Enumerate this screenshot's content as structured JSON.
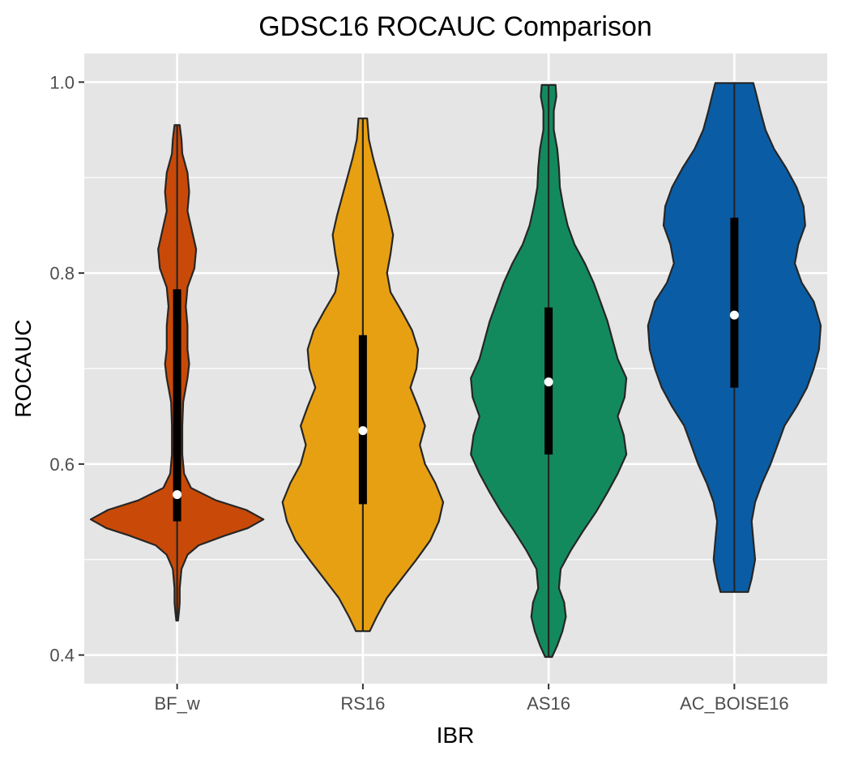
{
  "chart_data": {
    "type": "violin",
    "title": "GDSC16 ROCAUC Comparison",
    "xlabel": "IBR",
    "ylabel": "ROCAUC",
    "ylim": [
      0.37,
      1.03
    ],
    "yticks": [
      0.4,
      0.6,
      0.8,
      1.0
    ],
    "ytick_labels": [
      "0.4",
      "0.6",
      "0.8",
      "1.0"
    ],
    "grid": true,
    "legend": "none",
    "categories": [
      "BF_w",
      "RS16",
      "AS16",
      "AC_BOISE16"
    ],
    "series": [
      {
        "category": "BF_w",
        "color": "#C94A08",
        "min": 0.436,
        "max": 0.955,
        "q1": 0.54,
        "median": 0.568,
        "q3": 0.783,
        "density": [
          [
            0.436,
            0.01
          ],
          [
            0.446,
            0.022
          ],
          [
            0.455,
            0.03
          ],
          [
            0.47,
            0.03
          ],
          [
            0.49,
            0.05
          ],
          [
            0.505,
            0.12
          ],
          [
            0.515,
            0.25
          ],
          [
            0.525,
            0.55
          ],
          [
            0.533,
            0.82
          ],
          [
            0.542,
            1.0
          ],
          [
            0.552,
            0.8
          ],
          [
            0.562,
            0.45
          ],
          [
            0.575,
            0.16
          ],
          [
            0.59,
            0.08
          ],
          [
            0.61,
            0.06
          ],
          [
            0.64,
            0.06
          ],
          [
            0.665,
            0.07
          ],
          [
            0.69,
            0.12
          ],
          [
            0.705,
            0.14
          ],
          [
            0.72,
            0.12
          ],
          [
            0.745,
            0.12
          ],
          [
            0.765,
            0.1
          ],
          [
            0.785,
            0.12
          ],
          [
            0.805,
            0.2
          ],
          [
            0.825,
            0.22
          ],
          [
            0.845,
            0.17
          ],
          [
            0.865,
            0.12
          ],
          [
            0.885,
            0.14
          ],
          [
            0.905,
            0.12
          ],
          [
            0.925,
            0.06
          ],
          [
            0.94,
            0.05
          ],
          [
            0.955,
            0.03
          ]
        ]
      },
      {
        "category": "RS16",
        "color": "#E8A013",
        "min": 0.425,
        "max": 0.962,
        "q1": 0.558,
        "median": 0.635,
        "q3": 0.735,
        "density": [
          [
            0.425,
            0.08
          ],
          [
            0.44,
            0.16
          ],
          [
            0.46,
            0.28
          ],
          [
            0.48,
            0.45
          ],
          [
            0.5,
            0.62
          ],
          [
            0.52,
            0.78
          ],
          [
            0.54,
            0.88
          ],
          [
            0.56,
            0.93
          ],
          [
            0.58,
            0.84
          ],
          [
            0.6,
            0.72
          ],
          [
            0.62,
            0.66
          ],
          [
            0.64,
            0.72
          ],
          [
            0.66,
            0.64
          ],
          [
            0.68,
            0.55
          ],
          [
            0.7,
            0.62
          ],
          [
            0.72,
            0.64
          ],
          [
            0.74,
            0.57
          ],
          [
            0.76,
            0.45
          ],
          [
            0.78,
            0.32
          ],
          [
            0.8,
            0.28
          ],
          [
            0.82,
            0.32
          ],
          [
            0.84,
            0.35
          ],
          [
            0.86,
            0.3
          ],
          [
            0.88,
            0.24
          ],
          [
            0.9,
            0.18
          ],
          [
            0.92,
            0.12
          ],
          [
            0.94,
            0.07
          ],
          [
            0.962,
            0.05
          ]
        ]
      },
      {
        "category": "AS16",
        "color": "#138A5E",
        "min": 0.398,
        "max": 0.997,
        "q1": 0.61,
        "median": 0.686,
        "q3": 0.764,
        "density": [
          [
            0.398,
            0.04
          ],
          [
            0.41,
            0.1
          ],
          [
            0.425,
            0.16
          ],
          [
            0.44,
            0.2
          ],
          [
            0.455,
            0.18
          ],
          [
            0.47,
            0.12
          ],
          [
            0.49,
            0.14
          ],
          [
            0.51,
            0.26
          ],
          [
            0.53,
            0.4
          ],
          [
            0.55,
            0.55
          ],
          [
            0.57,
            0.68
          ],
          [
            0.59,
            0.8
          ],
          [
            0.61,
            0.9
          ],
          [
            0.63,
            0.87
          ],
          [
            0.65,
            0.8
          ],
          [
            0.67,
            0.88
          ],
          [
            0.69,
            0.9
          ],
          [
            0.71,
            0.8
          ],
          [
            0.73,
            0.74
          ],
          [
            0.75,
            0.68
          ],
          [
            0.77,
            0.6
          ],
          [
            0.79,
            0.52
          ],
          [
            0.81,
            0.42
          ],
          [
            0.83,
            0.3
          ],
          [
            0.85,
            0.22
          ],
          [
            0.87,
            0.17
          ],
          [
            0.89,
            0.13
          ],
          [
            0.91,
            0.12
          ],
          [
            0.93,
            0.1
          ],
          [
            0.95,
            0.06
          ],
          [
            0.97,
            0.06
          ],
          [
            0.985,
            0.09
          ],
          [
            0.997,
            0.08
          ]
        ]
      },
      {
        "category": "AC_BOISE16",
        "color": "#0A5DA5",
        "min": 0.466,
        "max": 0.999,
        "q1": 0.68,
        "median": 0.756,
        "q3": 0.858,
        "density": [
          [
            0.466,
            0.16
          ],
          [
            0.48,
            0.2
          ],
          [
            0.5,
            0.24
          ],
          [
            0.52,
            0.22
          ],
          [
            0.54,
            0.2
          ],
          [
            0.56,
            0.24
          ],
          [
            0.58,
            0.32
          ],
          [
            0.6,
            0.42
          ],
          [
            0.62,
            0.5
          ],
          [
            0.64,
            0.58
          ],
          [
            0.66,
            0.72
          ],
          [
            0.68,
            0.84
          ],
          [
            0.7,
            0.92
          ],
          [
            0.72,
            0.98
          ],
          [
            0.745,
            1.0
          ],
          [
            0.77,
            0.92
          ],
          [
            0.79,
            0.78
          ],
          [
            0.81,
            0.7
          ],
          [
            0.83,
            0.74
          ],
          [
            0.85,
            0.82
          ],
          [
            0.87,
            0.8
          ],
          [
            0.89,
            0.72
          ],
          [
            0.91,
            0.6
          ],
          [
            0.93,
            0.46
          ],
          [
            0.95,
            0.36
          ],
          [
            0.97,
            0.3
          ],
          [
            0.985,
            0.26
          ],
          [
            0.999,
            0.22
          ]
        ]
      }
    ]
  }
}
